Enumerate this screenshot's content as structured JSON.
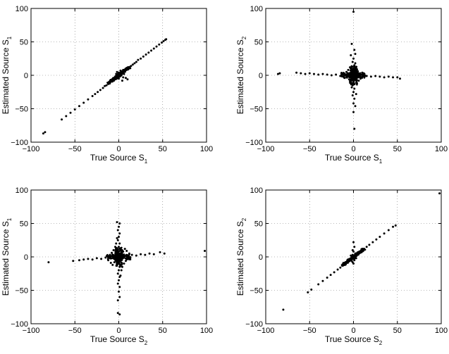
{
  "chart_data": [
    {
      "type": "scatter",
      "xlabel": "True Source S",
      "xlabel_sub": "1",
      "ylabel": "Estimated Source S",
      "ylabel_sub": "1",
      "xlim": [
        -100,
        100
      ],
      "ylim": [
        -100,
        100
      ],
      "xticks": [
        -100,
        -50,
        0,
        50,
        100
      ],
      "yticks": [
        -100,
        -50,
        0,
        50,
        100
      ],
      "grid": true,
      "pattern": "diagonal",
      "points": [
        [
          -86,
          -87
        ],
        [
          -84,
          -85
        ],
        [
          -65,
          -66
        ],
        [
          -60,
          -61
        ],
        [
          -55,
          -56
        ],
        [
          -50,
          -51
        ],
        [
          -45,
          -46
        ],
        [
          -40,
          -41
        ],
        [
          -35,
          -36
        ],
        [
          -30,
          -31
        ],
        [
          -27,
          -28
        ],
        [
          -24,
          -25
        ],
        [
          -21,
          -22
        ],
        [
          -18,
          -19
        ],
        [
          -16,
          -16
        ],
        [
          -14,
          -15
        ],
        [
          -12,
          -13
        ],
        [
          -10,
          -11
        ],
        [
          -8,
          -9
        ],
        [
          -7,
          -7
        ],
        [
          -6,
          -6
        ],
        [
          -5,
          -4
        ],
        [
          -4,
          -5
        ],
        [
          -3,
          -3
        ],
        [
          -2,
          -2
        ],
        [
          -1,
          -1
        ],
        [
          0,
          0
        ],
        [
          1,
          1
        ],
        [
          2,
          2
        ],
        [
          3,
          3
        ],
        [
          4,
          4
        ],
        [
          5,
          6
        ],
        [
          6,
          5
        ],
        [
          7,
          7
        ],
        [
          8,
          8
        ],
        [
          9,
          9
        ],
        [
          10,
          10
        ],
        [
          12,
          12
        ],
        [
          14,
          14
        ],
        [
          16,
          16
        ],
        [
          18,
          18
        ],
        [
          20,
          20
        ],
        [
          22,
          23
        ],
        [
          25,
          25
        ],
        [
          28,
          28
        ],
        [
          31,
          31
        ],
        [
          34,
          34
        ],
        [
          37,
          37
        ],
        [
          40,
          40
        ],
        [
          43,
          43
        ],
        [
          46,
          46
        ],
        [
          49,
          49
        ],
        [
          51,
          51
        ],
        [
          53,
          53
        ],
        [
          54,
          54
        ],
        [
          -1,
          2
        ],
        [
          1,
          -2
        ],
        [
          0,
          4
        ],
        [
          2,
          -1
        ],
        [
          -2,
          1
        ],
        [
          3,
          0
        ],
        [
          -3,
          2
        ],
        [
          1,
          3
        ],
        [
          5,
          -3
        ],
        [
          -4,
          -2
        ],
        [
          6,
          2
        ],
        [
          8,
          -4
        ],
        [
          10,
          -6
        ],
        [
          4,
          -8
        ],
        [
          -2,
          5
        ],
        [
          0,
          -5
        ],
        [
          2,
          7
        ],
        [
          -1,
          -3
        ],
        [
          3,
          5
        ],
        [
          5,
          8
        ],
        [
          -6,
          -8
        ]
      ]
    },
    {
      "type": "scatter",
      "xlabel": "True Source S",
      "xlabel_sub": "1",
      "ylabel": "Estimated Source S",
      "ylabel_sub": "2",
      "xlim": [
        -100,
        100
      ],
      "ylim": [
        -100,
        100
      ],
      "xticks": [
        -100,
        -50,
        0,
        50,
        100
      ],
      "yticks": [
        -100,
        -50,
        0,
        50,
        100
      ],
      "grid": true,
      "pattern": "cross",
      "points": [
        [
          -86,
          2
        ],
        [
          -84,
          3
        ],
        [
          -65,
          4
        ],
        [
          -60,
          3
        ],
        [
          -55,
          2
        ],
        [
          -50,
          3
        ],
        [
          -45,
          2
        ],
        [
          -40,
          1
        ],
        [
          -35,
          2
        ],
        [
          -30,
          1
        ],
        [
          -25,
          0
        ],
        [
          -20,
          1
        ],
        [
          -15,
          -1
        ],
        [
          -10,
          0
        ],
        [
          -5,
          1
        ],
        [
          0,
          0
        ],
        [
          5,
          -1
        ],
        [
          10,
          0
        ],
        [
          15,
          -1
        ],
        [
          20,
          -2
        ],
        [
          25,
          -1
        ],
        [
          30,
          -2
        ],
        [
          35,
          -3
        ],
        [
          40,
          -2
        ],
        [
          45,
          -3
        ],
        [
          50,
          -3
        ],
        [
          53,
          -5
        ],
        [
          0,
          95
        ],
        [
          -2,
          47
        ],
        [
          1,
          38
        ],
        [
          2,
          32
        ],
        [
          0,
          25
        ],
        [
          -1,
          20
        ],
        [
          1,
          15
        ],
        [
          0,
          10
        ],
        [
          -1,
          5
        ],
        [
          1,
          -5
        ],
        [
          0,
          -10
        ],
        [
          -1,
          -15
        ],
        [
          1,
          -20
        ],
        [
          0,
          -25
        ],
        [
          -1,
          -30
        ],
        [
          1,
          -35
        ],
        [
          0,
          -42
        ],
        [
          2,
          -46
        ],
        [
          0,
          -55
        ],
        [
          1,
          -80
        ],
        [
          -3,
          30
        ],
        [
          3,
          -28
        ],
        [
          -2,
          -18
        ],
        [
          2,
          18
        ],
        [
          -4,
          12
        ],
        [
          4,
          -12
        ],
        [
          -6,
          8
        ],
        [
          6,
          -8
        ],
        [
          -8,
          5
        ],
        [
          8,
          -5
        ],
        [
          -10,
          -4
        ],
        [
          10,
          4
        ],
        [
          -12,
          2
        ],
        [
          12,
          -2
        ],
        [
          -3,
          -3
        ],
        [
          3,
          3
        ],
        [
          -5,
          -6
        ],
        [
          5,
          6
        ],
        [
          -7,
          -2
        ],
        [
          7,
          2
        ],
        [
          -2,
          6
        ],
        [
          2,
          -6
        ],
        [
          -4,
          -9
        ],
        [
          4,
          9
        ]
      ]
    },
    {
      "type": "scatter",
      "xlabel": "True Source S",
      "xlabel_sub": "2",
      "ylabel": "Estimated Source S",
      "ylabel_sub": "1",
      "xlim": [
        -100,
        100
      ],
      "ylim": [
        -100,
        100
      ],
      "xticks": [
        -100,
        -50,
        0,
        50,
        100
      ],
      "yticks": [
        -100,
        -50,
        0,
        50,
        100
      ],
      "grid": true,
      "pattern": "cross",
      "points": [
        [
          -80,
          -8
        ],
        [
          -52,
          -6
        ],
        [
          -45,
          -5
        ],
        [
          -40,
          -4
        ],
        [
          -35,
          -3
        ],
        [
          -30,
          -4
        ],
        [
          -25,
          -2
        ],
        [
          -20,
          -3
        ],
        [
          -15,
          -1
        ],
        [
          -10,
          -2
        ],
        [
          -5,
          0
        ],
        [
          0,
          0
        ],
        [
          5,
          1
        ],
        [
          10,
          2
        ],
        [
          15,
          3
        ],
        [
          20,
          2
        ],
        [
          25,
          4
        ],
        [
          30,
          3
        ],
        [
          35,
          5
        ],
        [
          40,
          4
        ],
        [
          47,
          7
        ],
        [
          52,
          5
        ],
        [
          98,
          9
        ],
        [
          -2,
          52
        ],
        [
          1,
          50
        ],
        [
          0,
          45
        ],
        [
          -1,
          40
        ],
        [
          1,
          35
        ],
        [
          0,
          30
        ],
        [
          -1,
          25
        ],
        [
          1,
          20
        ],
        [
          0,
          15
        ],
        [
          -1,
          10
        ],
        [
          1,
          5
        ],
        [
          0,
          -5
        ],
        [
          -1,
          -10
        ],
        [
          1,
          -15
        ],
        [
          0,
          -20
        ],
        [
          -1,
          -25
        ],
        [
          1,
          -30
        ],
        [
          0,
          -35
        ],
        [
          -1,
          -40
        ],
        [
          1,
          -45
        ],
        [
          0,
          -52
        ],
        [
          1,
          -60
        ],
        [
          -1,
          -65
        ],
        [
          -1,
          -84
        ],
        [
          1,
          -86
        ],
        [
          -4,
          15
        ],
        [
          4,
          -15
        ],
        [
          -6,
          10
        ],
        [
          6,
          -10
        ],
        [
          -8,
          6
        ],
        [
          8,
          -6
        ],
        [
          -10,
          3
        ],
        [
          10,
          -3
        ],
        [
          -12,
          -5
        ],
        [
          12,
          5
        ],
        [
          -3,
          20
        ],
        [
          3,
          -20
        ],
        [
          -5,
          -8
        ],
        [
          5,
          8
        ],
        [
          -7,
          -12
        ],
        [
          7,
          12
        ],
        [
          -2,
          28
        ],
        [
          2,
          -28
        ],
        [
          -9,
          -9
        ],
        [
          9,
          9
        ]
      ]
    },
    {
      "type": "scatter",
      "xlabel": "True Source S",
      "xlabel_sub": "2",
      "ylabel": "Estimated Source S",
      "ylabel_sub": "2",
      "xlim": [
        -100,
        100
      ],
      "ylim": [
        -100,
        100
      ],
      "xticks": [
        -100,
        -50,
        0,
        50,
        100
      ],
      "yticks": [
        -100,
        -50,
        0,
        50,
        100
      ],
      "grid": true,
      "pattern": "diagonal",
      "points": [
        [
          -80,
          -79
        ],
        [
          -52,
          -53
        ],
        [
          -48,
          -49
        ],
        [
          -40,
          -41
        ],
        [
          -35,
          -36
        ],
        [
          -30,
          -31
        ],
        [
          -26,
          -27
        ],
        [
          -22,
          -23
        ],
        [
          -18,
          -19
        ],
        [
          -15,
          -16
        ],
        [
          -12,
          -13
        ],
        [
          -10,
          -11
        ],
        [
          -8,
          -9
        ],
        [
          -6,
          -7
        ],
        [
          -5,
          -5
        ],
        [
          -4,
          -4
        ],
        [
          -3,
          -3
        ],
        [
          -2,
          -2
        ],
        [
          -1,
          -1
        ],
        [
          0,
          0
        ],
        [
          1,
          1
        ],
        [
          2,
          2
        ],
        [
          3,
          3
        ],
        [
          4,
          4
        ],
        [
          5,
          5
        ],
        [
          6,
          6
        ],
        [
          8,
          8
        ],
        [
          10,
          10
        ],
        [
          12,
          12
        ],
        [
          15,
          15
        ],
        [
          18,
          18
        ],
        [
          22,
          22
        ],
        [
          26,
          26
        ],
        [
          30,
          30
        ],
        [
          35,
          35
        ],
        [
          40,
          40
        ],
        [
          45,
          45
        ],
        [
          48,
          47
        ],
        [
          98,
          95
        ],
        [
          0,
          22
        ],
        [
          1,
          15
        ],
        [
          -1,
          10
        ],
        [
          0,
          8
        ],
        [
          1,
          -5
        ],
        [
          -1,
          -8
        ],
        [
          0,
          -10
        ],
        [
          2,
          3
        ],
        [
          -2,
          -3
        ],
        [
          1,
          -3
        ],
        [
          -1,
          3
        ],
        [
          3,
          -2
        ],
        [
          -3,
          2
        ],
        [
          2,
          5
        ],
        [
          -2,
          -6
        ]
      ]
    }
  ]
}
